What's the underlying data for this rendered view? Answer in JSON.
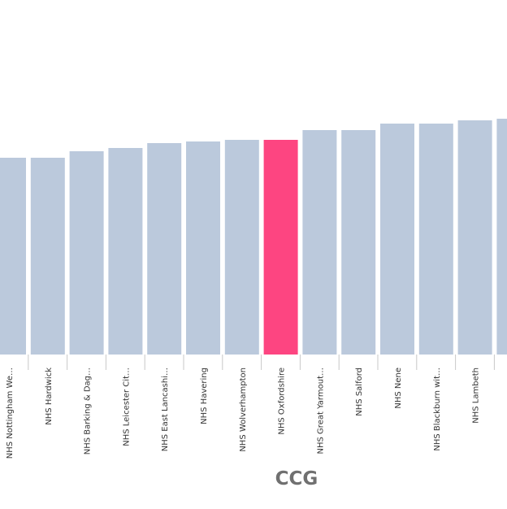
{
  "chart_data": {
    "type": "bar",
    "xlabel": "CCG",
    "ylabel": "",
    "title": "",
    "categories": [
      "NHS Nottingham We…",
      "NHS Hardwick",
      "NHS Barking & Dag…",
      "NHS Leicester Cit…",
      "NHS East Lancashi…",
      "NHS Havering",
      "NHS Wolverhampton",
      "NHS Oxfordshire",
      "NHS Great Yarmout…",
      "NHS Salford",
      "NHS Nene",
      "NHS Blackburn wit…",
      "NHS Lambeth",
      ""
    ],
    "values": [
      242,
      242,
      250,
      254,
      260,
      262,
      264,
      264,
      276,
      276,
      284,
      284,
      288,
      290
    ],
    "highlight_index": 7,
    "ylim": [
      0,
      436
    ],
    "grid": false,
    "legend": "none"
  },
  "colors": {
    "bar": "#bbc9dc",
    "highlight": "#fd4581",
    "tick": "#c8c8c8",
    "label": "#333333",
    "axis_title": "#707070"
  }
}
